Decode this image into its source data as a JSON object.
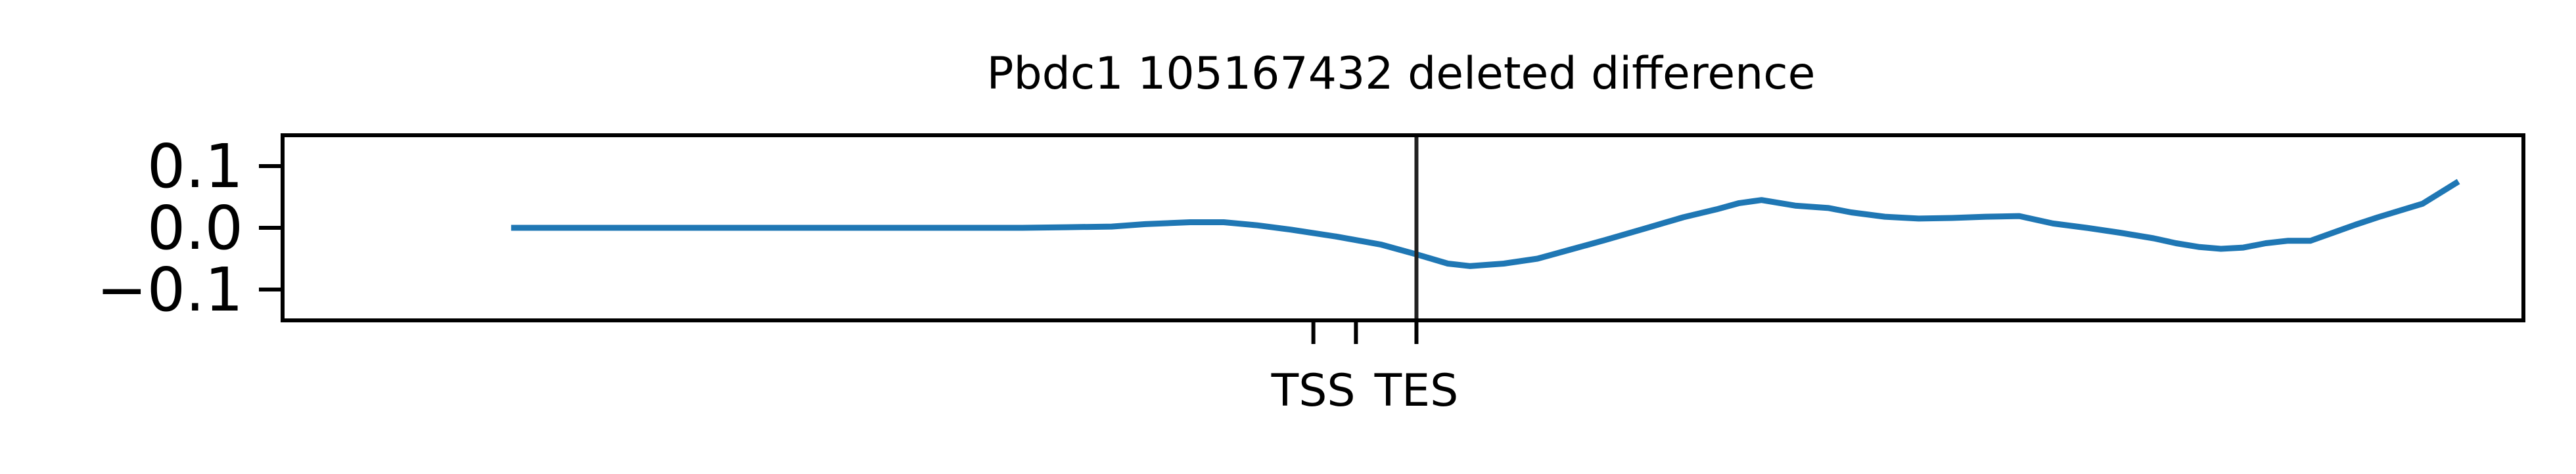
{
  "chart_data": {
    "type": "line",
    "title": "Pbdc1 105167432 deleted difference",
    "xlabel": "",
    "ylabel": "",
    "ylim": [
      -0.15,
      0.15
    ],
    "xlim": [
      0,
      100
    ],
    "grid": false,
    "yticks": [
      {
        "value": 0.1,
        "label": "0.1"
      },
      {
        "value": 0.0,
        "label": "0.0"
      },
      {
        "value": -0.1,
        "label": "−0.1"
      }
    ],
    "xticks": [
      {
        "value": 46.0,
        "label": "TSS"
      },
      {
        "value": 47.9,
        "label": ""
      },
      {
        "value": 50.6,
        "label": "TES"
      }
    ],
    "vline": {
      "x": 50.6,
      "color": "#222222"
    },
    "series": [
      {
        "color": "#1f77b4",
        "x": [
          10.2,
          15,
          20,
          25,
          30,
          33,
          35,
          37,
          38.5,
          40.5,
          42,
          43.5,
          45,
          47,
          49,
          50.6,
          52,
          53,
          54.5,
          56,
          57.5,
          59,
          61,
          62.5,
          64,
          65,
          66,
          67.5,
          69,
          70,
          71.5,
          73,
          74.5,
          76,
          77.5,
          79,
          80.5,
          82,
          83.5,
          84.5,
          85.5,
          86.5,
          87.5,
          88.5,
          89.5,
          90.5,
          91.5,
          92.5,
          93.5,
          95.5,
          97.1
        ],
        "y": [
          0.0,
          0.0,
          0.0,
          0.0,
          0.0,
          0.0,
          0.001,
          0.002,
          0.006,
          0.009,
          0.009,
          0.004,
          -0.003,
          -0.014,
          -0.027,
          -0.043,
          -0.058,
          -0.062,
          -0.058,
          -0.05,
          -0.035,
          -0.02,
          0.001,
          0.017,
          0.03,
          0.04,
          0.045,
          0.036,
          0.032,
          0.025,
          0.018,
          0.015,
          0.016,
          0.018,
          0.019,
          0.007,
          0.0,
          -0.008,
          -0.017,
          -0.025,
          -0.031,
          -0.034,
          -0.032,
          -0.025,
          -0.021,
          -0.021,
          -0.008,
          0.005,
          0.017,
          0.039,
          0.075
        ]
      }
    ]
  }
}
